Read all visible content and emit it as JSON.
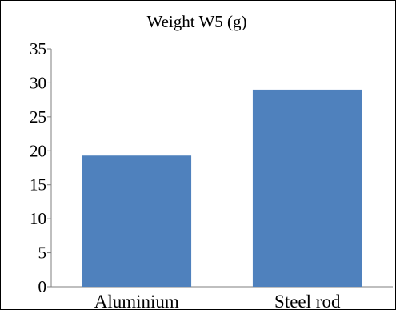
{
  "chart_data": {
    "type": "bar",
    "title": "Weight W5 (g)",
    "categories": [
      "Aluminium",
      "Steel rod"
    ],
    "values": [
      19.3,
      29.0
    ],
    "xlabel": "",
    "ylabel": "",
    "ylim": [
      0,
      35
    ],
    "yticks": [
      "0",
      "5",
      "10",
      "15",
      "20",
      "25",
      "30",
      "35"
    ],
    "grid": false,
    "legend": "none",
    "bar_color": "#4f81bd"
  }
}
